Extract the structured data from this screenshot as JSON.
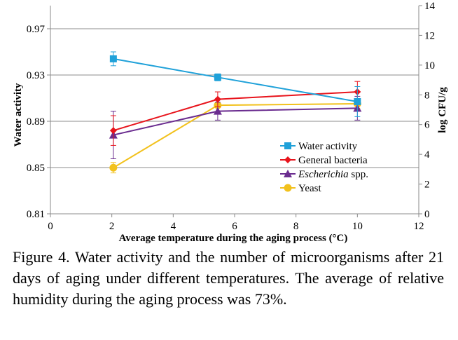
{
  "chart_data": {
    "type": "line",
    "title": "",
    "xlabel": "Average temperature during the aging process (°C)",
    "ylabel_left": "Water activity",
    "ylabel_right": "log CFU/g",
    "xlim": [
      0,
      12
    ],
    "xticks": [
      0,
      2,
      4,
      6,
      8,
      10,
      12
    ],
    "ylim_left": [
      0.81,
      0.99
    ],
    "yticks_left": [
      "0.81",
      "0.85",
      "0.89",
      "0.93",
      "0.97"
    ],
    "ylim_right": [
      0,
      14
    ],
    "yticks_right": [
      0,
      2,
      4,
      6,
      8,
      10,
      12,
      14
    ],
    "legend_position": "lower-right",
    "series": [
      {
        "name": "Water activity",
        "axis": "left",
        "color": "#1fa1d9",
        "marker": "square",
        "x": [
          2.05,
          5.45,
          10
        ],
        "y": [
          0.944,
          0.928,
          0.907
        ],
        "err": [
          0.006,
          0.003,
          0.013
        ]
      },
      {
        "name": "General bacteria",
        "axis": "right",
        "color": "#e8141c",
        "marker": "diamond",
        "x": [
          2.05,
          5.45,
          10
        ],
        "y": [
          5.6,
          7.7,
          8.2
        ],
        "err": [
          1.0,
          0.5,
          0.7
        ]
      },
      {
        "name": "Escherichia spp.",
        "name_italic": "Escherichia",
        "name_rest": " spp.",
        "axis": "right",
        "color": "#6a2c8f",
        "marker": "triangle",
        "x": [
          2.05,
          5.45,
          10
        ],
        "y": [
          5.3,
          6.9,
          7.1
        ],
        "err": [
          1.6,
          0.6,
          0.8
        ]
      },
      {
        "name": "Yeast",
        "axis": "right",
        "color": "#f2c11c",
        "marker": "circle",
        "x": [
          2.05,
          5.45,
          10
        ],
        "y": [
          3.1,
          7.3,
          7.4
        ],
        "err": [
          0.35,
          0.15,
          0.3
        ]
      }
    ]
  },
  "caption": "Figure 4. Water activity and the number of microorganisms after 21 days of aging under different temperatures. The average of relative humidity during the aging process was 73%."
}
